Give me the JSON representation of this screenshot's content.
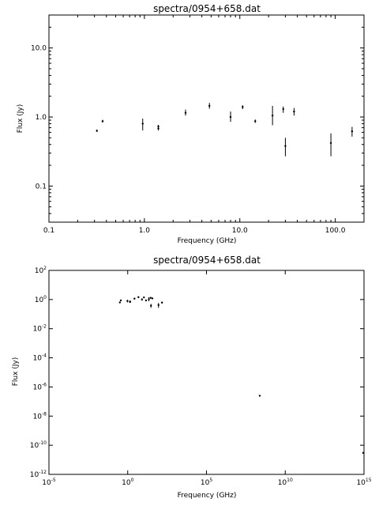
{
  "chart_data": [
    {
      "type": "scatter",
      "title": "spectra/0954+658.dat",
      "xlabel": "Frequency (GHz)",
      "ylabel": "Flux (Jy)",
      "xscale": "log",
      "yscale": "log",
      "xlim": [
        0.1,
        200
      ],
      "ylim": [
        0.03,
        30
      ],
      "xticks": [
        {
          "value": 0.1,
          "label": "0.1"
        },
        {
          "value": 1,
          "label": "1.0"
        },
        {
          "value": 10,
          "label": "10.0"
        },
        {
          "value": 100,
          "label": "100.0"
        }
      ],
      "yticks": [
        {
          "value": 0.1,
          "label": "0.1"
        },
        {
          "value": 1,
          "label": "1.0"
        },
        {
          "value": 10,
          "label": "10.0"
        }
      ],
      "grid": false,
      "points": [
        {
          "x": 0.318,
          "y": 0.63,
          "ylo": 0.61,
          "yhi": 0.66
        },
        {
          "x": 0.365,
          "y": 0.87,
          "ylo": 0.83,
          "yhi": 0.91
        },
        {
          "x": 0.96,
          "y": 0.8,
          "ylo": 0.64,
          "yhi": 0.95
        },
        {
          "x": 1.4,
          "y": 0.68,
          "ylo": 0.64,
          "yhi": 0.73
        },
        {
          "x": 1.4,
          "y": 0.73,
          "ylo": 0.7,
          "yhi": 0.77
        },
        {
          "x": 2.7,
          "y": 1.15,
          "ylo": 1.05,
          "yhi": 1.28
        },
        {
          "x": 4.8,
          "y": 1.45,
          "ylo": 1.32,
          "yhi": 1.6
        },
        {
          "x": 8.0,
          "y": 1.0,
          "ylo": 0.85,
          "yhi": 1.2
        },
        {
          "x": 10.7,
          "y": 1.4,
          "ylo": 1.3,
          "yhi": 1.48
        },
        {
          "x": 14.5,
          "y": 0.87,
          "ylo": 0.82,
          "yhi": 0.92
        },
        {
          "x": 22.0,
          "y": 1.05,
          "ylo": 0.76,
          "yhi": 1.45
        },
        {
          "x": 28.5,
          "y": 1.3,
          "ylo": 1.15,
          "yhi": 1.42
        },
        {
          "x": 30.0,
          "y": 0.38,
          "ylo": 0.27,
          "yhi": 0.5
        },
        {
          "x": 37.0,
          "y": 1.2,
          "ylo": 1.05,
          "yhi": 1.35
        },
        {
          "x": 90.0,
          "y": 0.42,
          "ylo": 0.27,
          "yhi": 0.58
        },
        {
          "x": 150.0,
          "y": 0.62,
          "ylo": 0.52,
          "yhi": 0.72
        }
      ]
    },
    {
      "type": "scatter",
      "title": "spectra/0954+658.dat",
      "xlabel": "Frequency (GHz)",
      "ylabel": "Flux (Jy)",
      "xscale": "log",
      "yscale": "log",
      "xlim": [
        1e-05,
        1000000000000000.0
      ],
      "ylim": [
        1e-12,
        100
      ],
      "xticks": [
        {
          "value": 1e-05,
          "base": "10",
          "exp": "-5"
        },
        {
          "value": 1,
          "base": "10",
          "exp": "0"
        },
        {
          "value": 100000.0,
          "base": "10",
          "exp": "5"
        },
        {
          "value": 10000000000.0,
          "base": "10",
          "exp": "10"
        },
        {
          "value": 1000000000000000.0,
          "base": "10",
          "exp": "15"
        }
      ],
      "yticks": [
        {
          "value": 1e-12,
          "base": "10",
          "exp": "-12"
        },
        {
          "value": 1e-10,
          "base": "10",
          "exp": "-10"
        },
        {
          "value": 1e-08,
          "base": "10",
          "exp": "-8"
        },
        {
          "value": 1e-06,
          "base": "10",
          "exp": "-6"
        },
        {
          "value": 0.0001,
          "base": "10",
          "exp": "-4"
        },
        {
          "value": 0.01,
          "base": "10",
          "exp": "-2"
        },
        {
          "value": 1,
          "base": "10",
          "exp": "0"
        },
        {
          "value": 100,
          "base": "10",
          "exp": "2"
        }
      ],
      "grid": false,
      "points": [
        {
          "x": 0.318,
          "y": 0.63,
          "ylo": 0.61,
          "yhi": 0.66
        },
        {
          "x": 0.365,
          "y": 0.87,
          "ylo": 0.83,
          "yhi": 0.91
        },
        {
          "x": 0.96,
          "y": 0.8,
          "ylo": 0.64,
          "yhi": 0.95
        },
        {
          "x": 1.4,
          "y": 0.68,
          "ylo": 0.64,
          "yhi": 0.73
        },
        {
          "x": 1.4,
          "y": 0.73,
          "ylo": 0.7,
          "yhi": 0.77
        },
        {
          "x": 2.7,
          "y": 1.15,
          "ylo": 1.05,
          "yhi": 1.28
        },
        {
          "x": 4.8,
          "y": 1.45,
          "ylo": 1.32,
          "yhi": 1.6
        },
        {
          "x": 8.0,
          "y": 1.0,
          "ylo": 0.85,
          "yhi": 1.2
        },
        {
          "x": 10.7,
          "y": 1.4,
          "ylo": 1.3,
          "yhi": 1.48
        },
        {
          "x": 14.5,
          "y": 0.87,
          "ylo": 0.82,
          "yhi": 0.92
        },
        {
          "x": 22.0,
          "y": 1.05,
          "ylo": 0.76,
          "yhi": 1.45
        },
        {
          "x": 28.5,
          "y": 1.3,
          "ylo": 1.15,
          "yhi": 1.42
        },
        {
          "x": 30.0,
          "y": 0.38,
          "ylo": 0.27,
          "yhi": 0.5
        },
        {
          "x": 37.0,
          "y": 1.2,
          "ylo": 1.05,
          "yhi": 1.35
        },
        {
          "x": 90.0,
          "y": 0.42,
          "ylo": 0.27,
          "yhi": 0.58
        },
        {
          "x": 150.0,
          "y": 0.62,
          "ylo": 0.52,
          "yhi": 0.72
        },
        {
          "x": 240000000.0,
          "y": 2.5e-07
        },
        {
          "x": 1000000000000000.0,
          "y": 3e-11
        }
      ]
    }
  ]
}
